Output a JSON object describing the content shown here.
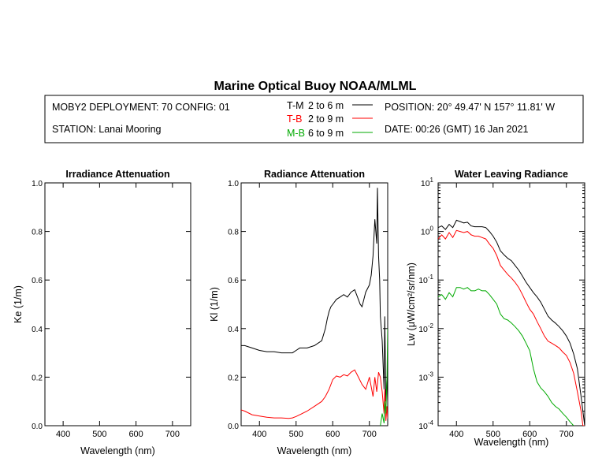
{
  "header": {
    "title": "Marine Optical Buoy NOAA/MLML",
    "deployment": "MOBY2 DEPLOYMENT: 70 CONFIG: 01",
    "station": "STATION: Lanai Mooring",
    "position": "POSITION: 20° 49.47' N   157° 11.81' W",
    "date": "DATE: 00:26 (GMT) 16 Jan 2021"
  },
  "legend": [
    {
      "key": "T-M",
      "range": "2 to 6  m",
      "color": "#000000"
    },
    {
      "key": "T-B",
      "range": "2 to 9  m",
      "color": "#ff0000"
    },
    {
      "key": "M-B",
      "range": "6 to 9  m",
      "color": "#00aa00"
    }
  ],
  "chart_data": [
    {
      "type": "line",
      "title": "Irradiance Attenuation",
      "xlabel": "Wavelength (nm)",
      "ylabel": "Ke  (1/m)",
      "xlim": [
        350,
        750
      ],
      "ylim": [
        0,
        1.0
      ],
      "xticks": [
        "400",
        "500",
        "600",
        "700"
      ],
      "yticks": [
        "0.0",
        "0.2",
        "0.4",
        "0.6",
        "0.8",
        "1.0"
      ],
      "series": []
    },
    {
      "type": "line",
      "title": "Radiance Attenuation",
      "xlabel": "Wavelength (nm)",
      "ylabel": "Kl  (1/m)",
      "xlim": [
        350,
        750
      ],
      "ylim": [
        0,
        1.0
      ],
      "xticks": [
        "400",
        "500",
        "600",
        "700"
      ],
      "yticks": [
        "0.0",
        "0.2",
        "0.4",
        "0.6",
        "0.8",
        "1.0"
      ],
      "series": [
        {
          "name": "T-M",
          "color": "#000000",
          "x": [
            350,
            360,
            380,
            400,
            420,
            440,
            460,
            480,
            490,
            500,
            510,
            530,
            550,
            570,
            580,
            585,
            590,
            595,
            600,
            610,
            620,
            630,
            640,
            650,
            660,
            670,
            675,
            680,
            690,
            700,
            705,
            710,
            715,
            720,
            722,
            725,
            728,
            730,
            735,
            740,
            742,
            745,
            748,
            750
          ],
          "y": [
            0.33,
            0.33,
            0.32,
            0.31,
            0.305,
            0.305,
            0.3,
            0.3,
            0.3,
            0.31,
            0.32,
            0.32,
            0.33,
            0.35,
            0.4,
            0.44,
            0.47,
            0.49,
            0.5,
            0.52,
            0.53,
            0.54,
            0.53,
            0.55,
            0.56,
            0.52,
            0.5,
            0.49,
            0.55,
            0.58,
            0.62,
            0.7,
            0.85,
            0.75,
            0.98,
            0.7,
            0.6,
            0.45,
            0.35,
            0.15,
            0.45,
            0.1,
            0.2,
            0.1
          ]
        },
        {
          "name": "T-B",
          "color": "#ff0000",
          "x": [
            350,
            360,
            380,
            400,
            420,
            440,
            460,
            480,
            490,
            500,
            510,
            530,
            550,
            570,
            580,
            590,
            600,
            610,
            620,
            630,
            640,
            650,
            660,
            670,
            680,
            690,
            700,
            710,
            715,
            720,
            725,
            730,
            735,
            740,
            742,
            745,
            748,
            750
          ],
          "y": [
            0.065,
            0.06,
            0.045,
            0.04,
            0.035,
            0.032,
            0.032,
            0.03,
            0.032,
            0.038,
            0.045,
            0.06,
            0.08,
            0.1,
            0.12,
            0.15,
            0.19,
            0.205,
            0.2,
            0.21,
            0.205,
            0.22,
            0.23,
            0.2,
            0.17,
            0.15,
            0.2,
            0.12,
            0.2,
            0.14,
            0.22,
            0.2,
            0.14,
            0.05,
            0.15,
            0.02,
            0.08,
            0.03
          ]
        },
        {
          "name": "M-B",
          "color": "#00aa00",
          "x": [
            730,
            735,
            740,
            742,
            745,
            748,
            750
          ],
          "y": [
            0.0,
            0.05,
            0.01,
            0.1,
            0.05,
            0.2,
            0.4
          ]
        }
      ]
    },
    {
      "type": "line",
      "title": "Water Leaving Radiance",
      "xlabel": "Wavelength (nm)",
      "ylabel": "Lw  (μW/cm²/sr/nm)",
      "xlim": [
        350,
        750
      ],
      "ylim": [
        0.0001,
        10
      ],
      "yscale": "log",
      "xticks": [
        "400",
        "500",
        "600",
        "700"
      ],
      "ytick_base": "10",
      "ytick_exponents": [
        "1",
        "0",
        "-1",
        "-2",
        "-3",
        "-4"
      ],
      "series": [
        {
          "name": "T-M",
          "color": "#000000",
          "x": [
            350,
            360,
            370,
            380,
            390,
            400,
            410,
            420,
            430,
            440,
            450,
            460,
            470,
            480,
            490,
            500,
            510,
            520,
            530,
            540,
            550,
            560,
            570,
            580,
            590,
            600,
            610,
            620,
            630,
            640,
            650,
            660,
            670,
            680,
            690,
            700,
            710,
            720,
            730,
            740,
            745,
            750
          ],
          "y": [
            1.2,
            1.3,
            1.1,
            1.4,
            1.2,
            1.7,
            1.6,
            1.5,
            1.55,
            1.3,
            1.25,
            1.25,
            1.25,
            1.2,
            1.0,
            0.8,
            0.6,
            0.4,
            0.33,
            0.28,
            0.25,
            0.2,
            0.16,
            0.12,
            0.09,
            0.07,
            0.055,
            0.045,
            0.035,
            0.025,
            0.018,
            0.015,
            0.013,
            0.011,
            0.009,
            0.007,
            0.005,
            0.003,
            0.0015,
            0.0004,
            0.0002,
            0.0001
          ]
        },
        {
          "name": "T-B",
          "color": "#ff0000",
          "x": [
            350,
            360,
            370,
            380,
            390,
            400,
            410,
            420,
            430,
            440,
            450,
            460,
            470,
            480,
            490,
            500,
            510,
            520,
            530,
            540,
            550,
            560,
            570,
            580,
            590,
            600,
            610,
            620,
            630,
            640,
            650,
            660,
            670,
            680,
            690,
            700,
            710,
            720,
            730,
            740,
            745,
            750
          ],
          "y": [
            0.7,
            0.85,
            0.7,
            0.95,
            0.75,
            1.05,
            1.0,
            0.95,
            1.0,
            0.85,
            0.8,
            0.8,
            0.75,
            0.7,
            0.55,
            0.45,
            0.32,
            0.2,
            0.16,
            0.13,
            0.11,
            0.09,
            0.07,
            0.05,
            0.035,
            0.025,
            0.02,
            0.014,
            0.01,
            0.007,
            0.0055,
            0.005,
            0.0045,
            0.004,
            0.0033,
            0.0028,
            0.002,
            0.0012,
            0.0005,
            0.0002,
            0.0001,
            0.0001
          ]
        },
        {
          "name": "M-B",
          "color": "#00aa00",
          "x": [
            350,
            360,
            370,
            380,
            390,
            400,
            410,
            420,
            430,
            440,
            450,
            460,
            470,
            480,
            490,
            500,
            510,
            520,
            530,
            540,
            550,
            560,
            570,
            580,
            590,
            600,
            610,
            620,
            630,
            640,
            650,
            660,
            670,
            680,
            690,
            700,
            710,
            720
          ],
          "y": [
            0.045,
            0.05,
            0.04,
            0.055,
            0.045,
            0.07,
            0.07,
            0.065,
            0.07,
            0.06,
            0.06,
            0.065,
            0.06,
            0.06,
            0.05,
            0.04,
            0.032,
            0.02,
            0.016,
            0.015,
            0.013,
            0.011,
            0.009,
            0.007,
            0.005,
            0.0035,
            0.0015,
            0.0008,
            0.0006,
            0.0005,
            0.0004,
            0.0003,
            0.00025,
            0.00022,
            0.00018,
            0.00015,
            0.00012,
            0.0001
          ]
        }
      ]
    }
  ]
}
